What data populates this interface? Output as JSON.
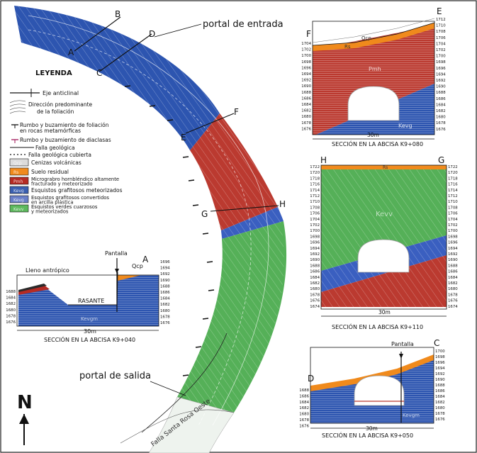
{
  "labels": {
    "portal_entrada": "portal de entrada",
    "portal_salida": "portal de salida",
    "leyenda": "LEYENDA",
    "north": "N",
    "falla": "Falla Santa Rosa Oeste",
    "tag_qcp": "Qcp",
    "tag_rs": "Rs"
  },
  "points": [
    "A",
    "B",
    "C",
    "D",
    "E",
    "F",
    "G",
    "H"
  ],
  "legend": {
    "lines": [
      {
        "name": "eje-anticlinal",
        "text": "Eje anticlinal"
      },
      {
        "name": "direccion-foliacion",
        "text": [
          "Dirección predominante",
          "de la foliación"
        ]
      },
      {
        "name": "rumbo-foliacion",
        "text": [
          "Rumbo y buzamiento de foliación",
          "en rocas metamórficas"
        ]
      },
      {
        "name": "rumbo-diaclasas",
        "text": "Rumbo y buzamiento de diaclasas"
      },
      {
        "name": "falla-geologica",
        "text": "Falla geológica"
      },
      {
        "name": "falla-cubierta",
        "text": "Falla geológica cubierta"
      }
    ],
    "units": [
      {
        "code": "Qcp",
        "color": "#dcdcdc",
        "text": [
          "Cenizas volcánicas"
        ]
      },
      {
        "code": "Rs",
        "color": "#f08a1c",
        "text": [
          "Suelo residual"
        ]
      },
      {
        "code": "Pmh",
        "color": "#b52b24",
        "text": [
          "Micrograbro hornbléndico altamente",
          "fracturado y meteorizado"
        ]
      },
      {
        "code": "Kevg",
        "color": "#3a5fb0",
        "text": [
          "Esquistos grafitosos meteorizados"
        ]
      },
      {
        "code": "Kevg",
        "color": "#6a7fc8",
        "text": [
          "Esquistos grafitosos convertidos",
          "en arcilla plástica"
        ]
      },
      {
        "code": "Kevv",
        "color": "#5cb85c",
        "text": [
          "Esquistos verdes cuarzosos",
          "y meteorizados"
        ]
      }
    ]
  },
  "sections": {
    "k9040": {
      "caption": "SECCIÓN EN LA ABCISA K9+040",
      "scale": "30m",
      "labels": {
        "pantalla": "Pantalla",
        "lleno": "Lleno antrópico",
        "rasante": "RASANTE",
        "qcp": "Qcp",
        "unit": "Kevgm"
      },
      "endpoint": "A",
      "left": [
        "1688",
        "1684",
        "1682",
        "1680",
        "1678",
        "1676"
      ],
      "right": [
        "1696",
        "1694",
        "1692",
        "1690",
        "1688",
        "1686",
        "1684",
        "1682",
        "1680",
        "1678",
        "1676"
      ]
    },
    "k9080": {
      "caption": "SECCIÓN EN LA ABCISA K9+080",
      "scale": "30m",
      "ends": {
        "left": "F",
        "right": "E"
      },
      "units": {
        "qcp": "Qcp",
        "rs": "Rs",
        "pmh": "Pmh",
        "kevg": "Kevg"
      },
      "left": [
        "1704",
        "1702",
        "1700",
        "1698",
        "1696",
        "1694",
        "1692",
        "1690",
        "1688",
        "1686",
        "1684",
        "1682",
        "1680",
        "1678",
        "1676"
      ],
      "right": [
        "1712",
        "1710",
        "1708",
        "1706",
        "1704",
        "1702",
        "1700",
        "1698",
        "1696",
        "1694",
        "1692",
        "1690",
        "1688",
        "1686",
        "1684",
        "1682",
        "1680",
        "1678",
        "1676"
      ]
    },
    "k9110": {
      "caption": "SECCIÓN EN LA ABCISA K9+110",
      "scale": "30m",
      "ends": {
        "left": "H",
        "right": "G"
      },
      "units": {
        "rs": "Rs",
        "kevv": "Kevv"
      },
      "left": [
        "1722",
        "1720",
        "1718",
        "1716",
        "1714",
        "1712",
        "1710",
        "1708",
        "1706",
        "1704",
        "1702",
        "1700",
        "1698",
        "1696",
        "1694",
        "1692",
        "1690",
        "1688",
        "1686",
        "1684",
        "1682",
        "1680",
        "1678",
        "1676",
        "1674"
      ],
      "right": [
        "1722",
        "1720",
        "1718",
        "1716",
        "1714",
        "1712",
        "1710",
        "1708",
        "1706",
        "1704",
        "1702",
        "1700",
        "1698",
        "1696",
        "1694",
        "1692",
        "1690",
        "1688",
        "1686",
        "1684",
        "1682",
        "1680",
        "1678",
        "1676",
        "1674"
      ]
    },
    "k9050": {
      "caption": "SECCIÓN EN LA ABCISA K9+050",
      "scale": "30m",
      "labels": {
        "pantalla": "Pantalla",
        "unit": "Kevgm"
      },
      "ends": {
        "left": "D",
        "right": "C"
      },
      "left": [
        "1688",
        "1686",
        "1684",
        "1682",
        "1680",
        "1678",
        "1676"
      ],
      "right": [
        "1700",
        "1698",
        "1696",
        "1694",
        "1692",
        "1690",
        "1688",
        "1686",
        "1684",
        "1682",
        "1680",
        "1678",
        "1676"
      ]
    }
  },
  "colors": {
    "blue": "#2d55b0",
    "red": "#bb3a30",
    "green": "#55b058",
    "orange": "#f08a1c",
    "gray": "#dcdcdc",
    "line": "#111111"
  }
}
